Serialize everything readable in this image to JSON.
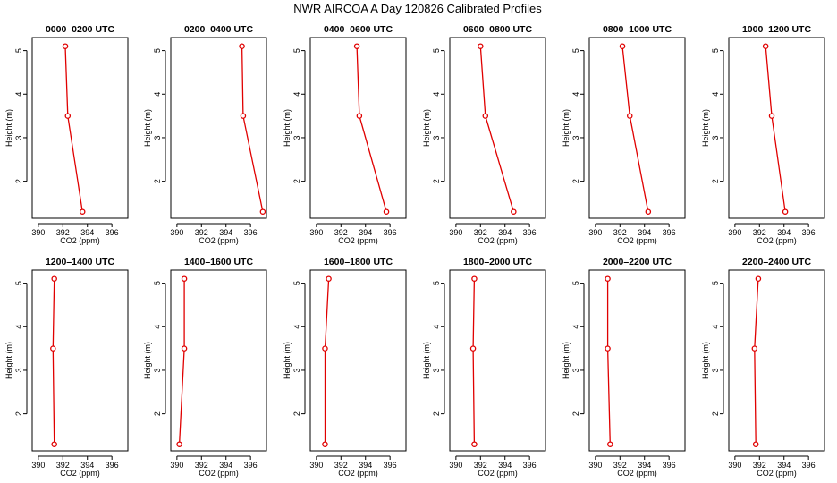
{
  "title": "NWR AIRCOA A  Day 120826  Calibrated Profiles",
  "colors": {
    "series": "#e00000",
    "axes": "#000000",
    "background": "#ffffff"
  },
  "chart_data": {
    "type": "line",
    "title": "NWR AIRCOA A  Day 120826  Calibrated Profiles",
    "xlabel": "CO2 (ppm)",
    "ylabel": "Height (m)",
    "xlim": [
      389.5,
      397.3
    ],
    "ylim": [
      1.15,
      5.3
    ],
    "x_ticks": [
      390,
      392,
      394,
      396
    ],
    "x_tick_labels": [
      "390",
      "392",
      "394",
      "396"
    ],
    "y_ticks": [
      2,
      3,
      4,
      5
    ],
    "y_tick_labels": [
      "2",
      "3",
      "4",
      "5"
    ],
    "grid": false,
    "panels": [
      {
        "title": "0000–0200 UTC",
        "points": [
          {
            "x": 393.6,
            "y": 1.3
          },
          {
            "x": 392.4,
            "y": 3.5
          },
          {
            "x": 392.2,
            "y": 5.1
          }
        ]
      },
      {
        "title": "0200–0400 UTC",
        "points": [
          {
            "x": 397.0,
            "y": 1.3
          },
          {
            "x": 395.4,
            "y": 3.5
          },
          {
            "x": 395.3,
            "y": 5.1
          }
        ]
      },
      {
        "title": "0400–0600 UTC",
        "points": [
          {
            "x": 395.7,
            "y": 1.3
          },
          {
            "x": 393.5,
            "y": 3.5
          },
          {
            "x": 393.3,
            "y": 5.1
          }
        ]
      },
      {
        "title": "0600–0800 UTC",
        "points": [
          {
            "x": 394.7,
            "y": 1.3
          },
          {
            "x": 392.4,
            "y": 3.5
          },
          {
            "x": 392.0,
            "y": 5.1
          }
        ]
      },
      {
        "title": "0800–1000 UTC",
        "points": [
          {
            "x": 394.3,
            "y": 1.3
          },
          {
            "x": 392.8,
            "y": 3.5
          },
          {
            "x": 392.2,
            "y": 5.1
          }
        ]
      },
      {
        "title": "1000–1200 UTC",
        "points": [
          {
            "x": 394.1,
            "y": 1.3
          },
          {
            "x": 393.0,
            "y": 3.5
          },
          {
            "x": 392.5,
            "y": 5.1
          }
        ]
      },
      {
        "title": "1200–1400 UTC",
        "points": [
          {
            "x": 391.3,
            "y": 1.3
          },
          {
            "x": 391.2,
            "y": 3.5
          },
          {
            "x": 391.3,
            "y": 5.1
          }
        ]
      },
      {
        "title": "1400–1600 UTC",
        "points": [
          {
            "x": 390.2,
            "y": 1.3
          },
          {
            "x": 390.6,
            "y": 3.5
          },
          {
            "x": 390.6,
            "y": 5.1
          }
        ]
      },
      {
        "title": "1600–1800 UTC",
        "points": [
          {
            "x": 390.7,
            "y": 1.3
          },
          {
            "x": 390.7,
            "y": 3.5
          },
          {
            "x": 391.0,
            "y": 5.1
          }
        ]
      },
      {
        "title": "1800–2000 UTC",
        "points": [
          {
            "x": 391.5,
            "y": 1.3
          },
          {
            "x": 391.4,
            "y": 3.5
          },
          {
            "x": 391.5,
            "y": 5.1
          }
        ]
      },
      {
        "title": "2000–2200 UTC",
        "points": [
          {
            "x": 391.2,
            "y": 1.3
          },
          {
            "x": 391.0,
            "y": 3.5
          },
          {
            "x": 391.0,
            "y": 5.1
          }
        ]
      },
      {
        "title": "2200–2400 UTC",
        "points": [
          {
            "x": 391.7,
            "y": 1.3
          },
          {
            "x": 391.6,
            "y": 3.5
          },
          {
            "x": 391.9,
            "y": 5.1
          }
        ]
      }
    ]
  }
}
